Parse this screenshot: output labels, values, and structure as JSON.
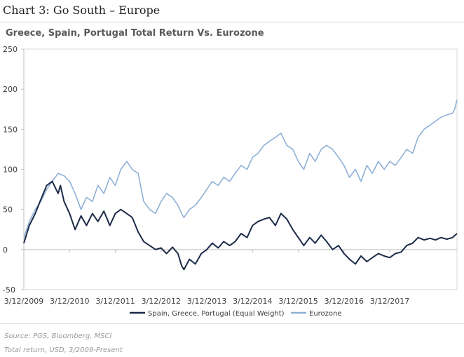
{
  "heading": "Chart 3: Go South – Europe",
  "source_note": "Source: PGS, Bloomberg, MSCI",
  "return_note": "Total return, USD, 3/2009-Present",
  "chart_data": {
    "type": "line",
    "title": "Greece, Spain, Portugal Total Return Vs. Eurozone",
    "xlabel": "",
    "ylabel": "",
    "ylim": [
      -50,
      250
    ],
    "yticks": [
      -50,
      0,
      50,
      100,
      150,
      200,
      250
    ],
    "xlim": [
      2009.0,
      2018.47
    ],
    "xticks": [
      {
        "value": 2009.0,
        "label": "3/12/2009"
      },
      {
        "value": 2010.0,
        "label": "3/12/2010"
      },
      {
        "value": 2011.0,
        "label": "3/12/2011"
      },
      {
        "value": 2012.0,
        "label": "3/12/2012"
      },
      {
        "value": 2013.0,
        "label": "3/12/2013"
      },
      {
        "value": 2014.0,
        "label": "3/12/2014"
      },
      {
        "value": 2015.0,
        "label": "3/12/2015"
      },
      {
        "value": 2016.0,
        "label": "3/12/2016"
      },
      {
        "value": 2017.0,
        "label": "3/12/2017"
      }
    ],
    "grid": false,
    "legend_position": "bottom",
    "series": [
      {
        "name": "Spain, Greece, Portugal (Equal Weight)",
        "color": "#1c2a48",
        "x": [
          2009.0,
          2009.12,
          2009.25,
          2009.37,
          2009.5,
          2009.62,
          2009.75,
          2009.8,
          2009.88,
          2010.0,
          2010.12,
          2010.25,
          2010.37,
          2010.5,
          2010.62,
          2010.75,
          2010.88,
          2011.0,
          2011.12,
          2011.25,
          2011.37,
          2011.5,
          2011.62,
          2011.75,
          2011.88,
          2012.0,
          2012.12,
          2012.25,
          2012.37,
          2012.45,
          2012.5,
          2012.62,
          2012.75,
          2012.88,
          2013.0,
          2013.12,
          2013.25,
          2013.37,
          2013.5,
          2013.62,
          2013.75,
          2013.88,
          2014.0,
          2014.12,
          2014.25,
          2014.37,
          2014.5,
          2014.62,
          2014.75,
          2014.88,
          2015.0,
          2015.12,
          2015.25,
          2015.37,
          2015.5,
          2015.62,
          2015.75,
          2015.88,
          2016.0,
          2016.12,
          2016.25,
          2016.37,
          2016.5,
          2016.62,
          2016.75,
          2016.88,
          2017.0,
          2017.12,
          2017.25,
          2017.37,
          2017.5,
          2017.62,
          2017.75,
          2017.88,
          2018.0,
          2018.12,
          2018.25,
          2018.37,
          2018.47
        ],
        "values": [
          8,
          30,
          45,
          62,
          80,
          85,
          70,
          80,
          60,
          45,
          25,
          42,
          30,
          45,
          35,
          48,
          30,
          45,
          50,
          45,
          40,
          22,
          10,
          5,
          0,
          2,
          -5,
          3,
          -5,
          -20,
          -25,
          -12,
          -18,
          -5,
          0,
          8,
          2,
          10,
          5,
          10,
          20,
          15,
          30,
          35,
          38,
          40,
          30,
          45,
          38,
          25,
          15,
          5,
          15,
          8,
          18,
          10,
          0,
          5,
          -5,
          -12,
          -18,
          -8,
          -15,
          -10,
          -5,
          -8,
          -10,
          -5,
          -3,
          5,
          8,
          15,
          12,
          14,
          12,
          15,
          13,
          15,
          20
        ]
      },
      {
        "name": "Eurozone",
        "color": "#8fb0d6",
        "x": [
          2009.0,
          2009.12,
          2009.25,
          2009.37,
          2009.5,
          2009.62,
          2009.75,
          2009.88,
          2010.0,
          2010.12,
          2010.25,
          2010.37,
          2010.5,
          2010.62,
          2010.75,
          2010.88,
          2011.0,
          2011.12,
          2011.25,
          2011.37,
          2011.5,
          2011.62,
          2011.75,
          2011.88,
          2012.0,
          2012.12,
          2012.25,
          2012.37,
          2012.45,
          2012.5,
          2012.62,
          2012.75,
          2012.88,
          2013.0,
          2013.12,
          2013.25,
          2013.37,
          2013.5,
          2013.62,
          2013.75,
          2013.88,
          2014.0,
          2014.12,
          2014.25,
          2014.37,
          2014.5,
          2014.62,
          2014.75,
          2014.88,
          2015.0,
          2015.12,
          2015.25,
          2015.37,
          2015.5,
          2015.62,
          2015.75,
          2015.88,
          2016.0,
          2016.12,
          2016.25,
          2016.37,
          2016.5,
          2016.62,
          2016.75,
          2016.88,
          2017.0,
          2017.12,
          2017.25,
          2017.37,
          2017.5,
          2017.62,
          2017.75,
          2017.88,
          2018.0,
          2018.12,
          2018.25,
          2018.37,
          2018.42,
          2018.47
        ],
        "values": [
          15,
          35,
          50,
          60,
          75,
          85,
          95,
          92,
          85,
          70,
          50,
          65,
          60,
          80,
          70,
          90,
          80,
          100,
          110,
          100,
          95,
          60,
          50,
          45,
          60,
          70,
          65,
          55,
          45,
          40,
          50,
          55,
          65,
          75,
          85,
          80,
          90,
          85,
          95,
          105,
          100,
          115,
          120,
          130,
          135,
          140,
          145,
          130,
          125,
          110,
          100,
          120,
          110,
          125,
          130,
          125,
          115,
          105,
          90,
          100,
          85,
          105,
          95,
          110,
          100,
          110,
          105,
          115,
          125,
          120,
          140,
          150,
          155,
          160,
          165,
          168,
          170,
          175,
          187
        ]
      }
    ]
  }
}
